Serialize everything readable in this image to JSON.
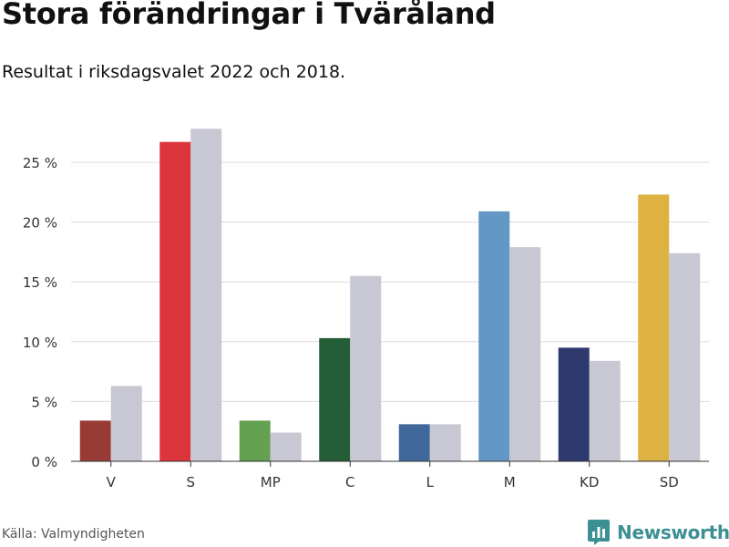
{
  "title": "Stora förändringar i Tväråland",
  "subtitle": "Resultat i riksdagsvalet 2022 och 2018.",
  "source": "Källa: Valmyndigheten",
  "brand": {
    "name": "Newsworthy",
    "icon": "newsworthy-logo-icon",
    "color": "#3c8f93"
  },
  "chart_data": {
    "type": "bar",
    "title": "Stora förändringar i Tväråland",
    "subtitle": "Resultat i riksdagsvalet 2022 och 2018.",
    "xlabel": "",
    "ylabel": "",
    "ylim": [
      0,
      28
    ],
    "yticks": [
      0,
      5,
      10,
      15,
      20,
      25
    ],
    "tick_suffix": " %",
    "grid": true,
    "categories": [
      "V",
      "S",
      "MP",
      "C",
      "L",
      "M",
      "KD",
      "SD"
    ],
    "series": [
      {
        "name": "2022",
        "values": [
          3.4,
          26.7,
          3.4,
          10.3,
          3.1,
          20.9,
          9.5,
          22.3
        ],
        "colors": [
          "#983a36",
          "#dc343b",
          "#63a151",
          "#245e36",
          "#41689a",
          "#6297c6",
          "#2e3a6e",
          "#ddb142"
        ]
      },
      {
        "name": "2018",
        "values": [
          6.3,
          27.8,
          2.4,
          15.5,
          3.1,
          17.9,
          8.4,
          17.4
        ],
        "color": "#c8c7d4"
      }
    ]
  }
}
